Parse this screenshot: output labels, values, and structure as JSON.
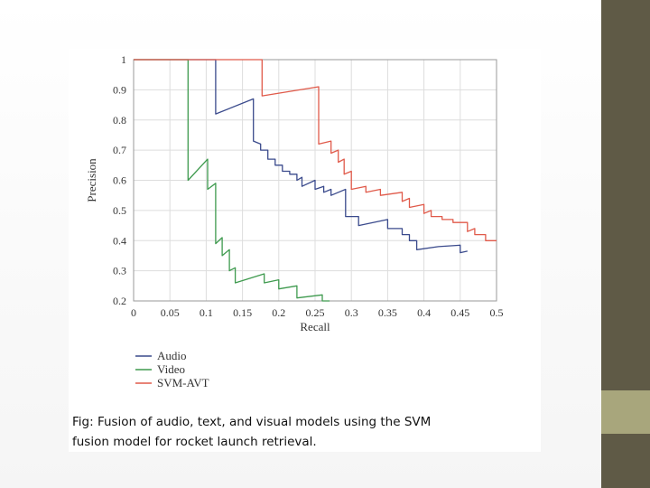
{
  "chart_data": {
    "type": "line",
    "xlabel": "Recall",
    "ylabel": "Precision",
    "xlim": [
      0,
      0.5
    ],
    "ylim": [
      0.2,
      1.0
    ],
    "x_ticks": [
      "0",
      "0.05",
      "0.1",
      "0.15",
      "0.2",
      "0.25",
      "0.3",
      "0.35",
      "0.4",
      "0.45",
      "0.5"
    ],
    "y_ticks": [
      "1",
      "0.9",
      "0.8",
      "0.7",
      "0.6",
      "0.5",
      "0.4",
      "0.3",
      "0.2"
    ],
    "grid": true,
    "legend_position": "below",
    "series": [
      {
        "name": "Audio",
        "color": "#3a4a8c",
        "points": [
          [
            0,
            1.0
          ],
          [
            0.113,
            1.0
          ],
          [
            0.113,
            0.82
          ],
          [
            0.165,
            0.87
          ],
          [
            0.165,
            0.73
          ],
          [
            0.175,
            0.72
          ],
          [
            0.175,
            0.7
          ],
          [
            0.185,
            0.7
          ],
          [
            0.185,
            0.67
          ],
          [
            0.195,
            0.67
          ],
          [
            0.195,
            0.65
          ],
          [
            0.205,
            0.65
          ],
          [
            0.205,
            0.63
          ],
          [
            0.215,
            0.63
          ],
          [
            0.215,
            0.62
          ],
          [
            0.225,
            0.62
          ],
          [
            0.225,
            0.6
          ],
          [
            0.232,
            0.61
          ],
          [
            0.232,
            0.58
          ],
          [
            0.25,
            0.6
          ],
          [
            0.25,
            0.57
          ],
          [
            0.262,
            0.58
          ],
          [
            0.262,
            0.56
          ],
          [
            0.272,
            0.57
          ],
          [
            0.272,
            0.55
          ],
          [
            0.292,
            0.57
          ],
          [
            0.292,
            0.48
          ],
          [
            0.31,
            0.48
          ],
          [
            0.31,
            0.45
          ],
          [
            0.35,
            0.47
          ],
          [
            0.35,
            0.44
          ],
          [
            0.37,
            0.44
          ],
          [
            0.37,
            0.42
          ],
          [
            0.38,
            0.42
          ],
          [
            0.38,
            0.4
          ],
          [
            0.39,
            0.4
          ],
          [
            0.39,
            0.37
          ],
          [
            0.42,
            0.38
          ],
          [
            0.42,
            0.38
          ],
          [
            0.45,
            0.385
          ],
          [
            0.45,
            0.36
          ],
          [
            0.46,
            0.365
          ]
        ]
      },
      {
        "name": "Video",
        "color": "#3e9a4e",
        "points": [
          [
            0,
            1.0
          ],
          [
            0.075,
            1.0
          ],
          [
            0.075,
            0.6
          ],
          [
            0.102,
            0.67
          ],
          [
            0.102,
            0.57
          ],
          [
            0.113,
            0.59
          ],
          [
            0.113,
            0.39
          ],
          [
            0.122,
            0.41
          ],
          [
            0.122,
            0.35
          ],
          [
            0.132,
            0.37
          ],
          [
            0.132,
            0.3
          ],
          [
            0.14,
            0.31
          ],
          [
            0.14,
            0.26
          ],
          [
            0.18,
            0.29
          ],
          [
            0.18,
            0.26
          ],
          [
            0.2,
            0.27
          ],
          [
            0.2,
            0.24
          ],
          [
            0.225,
            0.25
          ],
          [
            0.225,
            0.21
          ],
          [
            0.26,
            0.22
          ],
          [
            0.26,
            0.2
          ],
          [
            0.27,
            0.2
          ]
        ]
      },
      {
        "name": "SVM-AVT",
        "color": "#e05a4a",
        "points": [
          [
            0,
            1.0
          ],
          [
            0.177,
            1.0
          ],
          [
            0.177,
            0.88
          ],
          [
            0.255,
            0.91
          ],
          [
            0.255,
            0.72
          ],
          [
            0.272,
            0.73
          ],
          [
            0.272,
            0.69
          ],
          [
            0.282,
            0.7
          ],
          [
            0.282,
            0.66
          ],
          [
            0.29,
            0.67
          ],
          [
            0.29,
            0.62
          ],
          [
            0.3,
            0.63
          ],
          [
            0.3,
            0.57
          ],
          [
            0.32,
            0.58
          ],
          [
            0.32,
            0.56
          ],
          [
            0.34,
            0.57
          ],
          [
            0.34,
            0.55
          ],
          [
            0.37,
            0.56
          ],
          [
            0.37,
            0.53
          ],
          [
            0.38,
            0.54
          ],
          [
            0.38,
            0.51
          ],
          [
            0.4,
            0.52
          ],
          [
            0.4,
            0.49
          ],
          [
            0.41,
            0.5
          ],
          [
            0.41,
            0.48
          ],
          [
            0.425,
            0.48
          ],
          [
            0.425,
            0.47
          ],
          [
            0.44,
            0.47
          ],
          [
            0.44,
            0.46
          ],
          [
            0.46,
            0.46
          ],
          [
            0.46,
            0.43
          ],
          [
            0.47,
            0.44
          ],
          [
            0.47,
            0.42
          ],
          [
            0.485,
            0.42
          ],
          [
            0.485,
            0.4
          ],
          [
            0.5,
            0.4
          ]
        ]
      }
    ]
  },
  "caption": {
    "line1": "Fig: Fusion of audio, text, and visual models using the SVM",
    "line2": "fusion model for rocket launch retrieval."
  }
}
